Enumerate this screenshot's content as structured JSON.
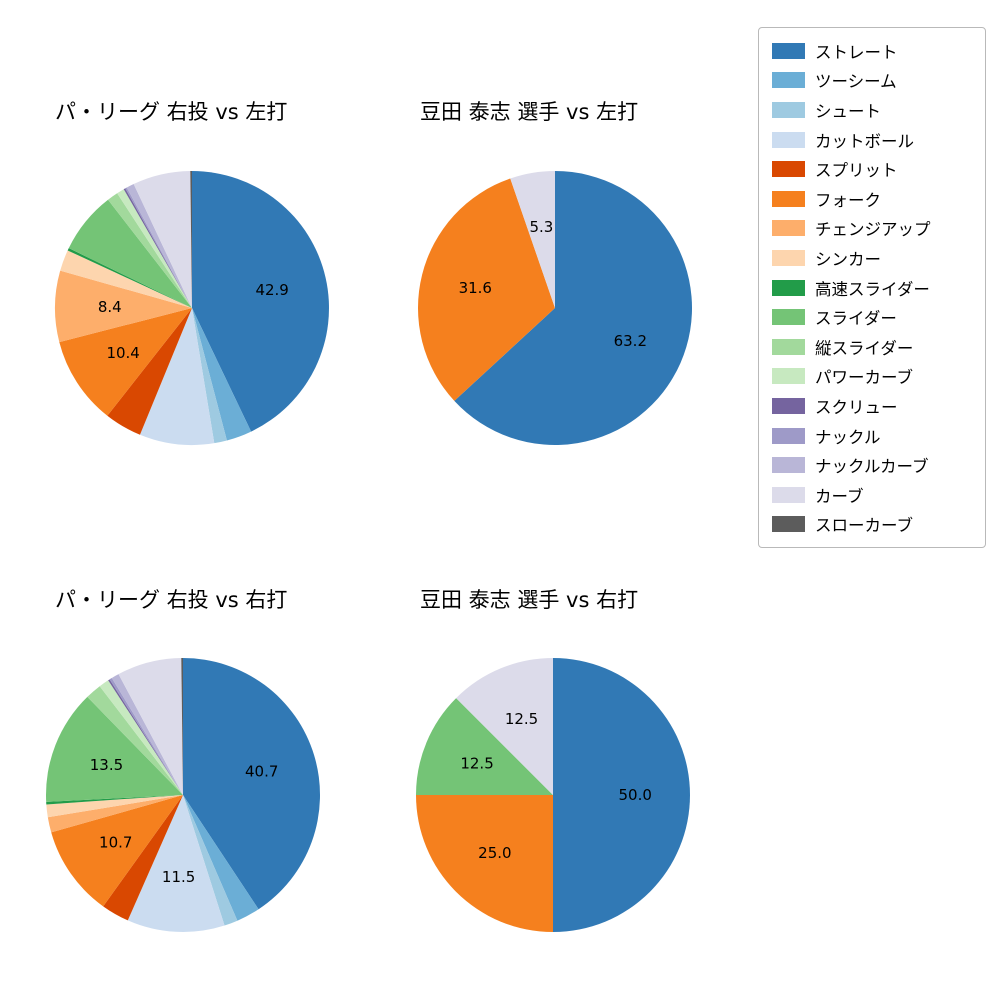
{
  "page": {
    "background": "#ffffff"
  },
  "palette": {
    "ストレート": "#3179b5",
    "ツーシーム": "#6baed6",
    "シュート": "#9ecae1",
    "カットボール": "#cbdcf0",
    "スプリット": "#d94801",
    "フォーク": "#f5801e",
    "チェンジアップ": "#fdae6b",
    "シンカー": "#fdd5ae",
    "高速スライダー": "#229c49",
    "スライダー": "#74c476",
    "縦スライダー": "#a2d99c",
    "パワーカーブ": "#c7e9c0",
    "スクリュー": "#75649f",
    "ナックル": "#9e9ac8",
    "ナックルカーブ": "#b9b6d7",
    "カーブ": "#dcdbea",
    "スローカーブ": "#5c5c5c"
  },
  "legend": {
    "items": [
      "ストレート",
      "ツーシーム",
      "シュート",
      "カットボール",
      "スプリット",
      "フォーク",
      "チェンジアップ",
      "シンカー",
      "高速スライダー",
      "スライダー",
      "縦スライダー",
      "パワーカーブ",
      "スクリュー",
      "ナックル",
      "ナックルカーブ",
      "カーブ",
      "スローカーブ"
    ]
  },
  "chart_data": {
    "type": "pie",
    "layout": {
      "start_angle_deg": 90,
      "direction": "clockwise",
      "label_radius_ratio": 0.6,
      "legend_position": "upper right",
      "note": "values without printed labels are visual estimates"
    },
    "charts": [
      {
        "title": "パ・リーグ 右投 vs 左打",
        "slices": [
          {
            "name": "ストレート",
            "value": 42.9,
            "label": "42.9"
          },
          {
            "name": "ツーシーム",
            "value": 3.0
          },
          {
            "name": "シュート",
            "value": 1.5
          },
          {
            "name": "カットボール",
            "value": 8.8
          },
          {
            "name": "スプリット",
            "value": 4.4
          },
          {
            "name": "フォーク",
            "value": 10.4,
            "label": "10.4"
          },
          {
            "name": "チェンジアップ",
            "value": 8.4,
            "label": "8.4"
          },
          {
            "name": "シンカー",
            "value": 2.5
          },
          {
            "name": "高速スライダー",
            "value": 0.3
          },
          {
            "name": "スライダー",
            "value": 7.3
          },
          {
            "name": "縦スライダー",
            "value": 1.3
          },
          {
            "name": "パワーカーブ",
            "value": 0.9
          },
          {
            "name": "スクリュー",
            "value": 0.2
          },
          {
            "name": "ナックル",
            "value": 0.2
          },
          {
            "name": "ナックルカーブ",
            "value": 0.9
          },
          {
            "name": "カーブ",
            "value": 6.8
          },
          {
            "name": "スローカーブ",
            "value": 0.2
          }
        ]
      },
      {
        "title": "豆田 泰志 選手 vs 左打",
        "slices": [
          {
            "name": "ストレート",
            "value": 63.2,
            "label": "63.2"
          },
          {
            "name": "フォーク",
            "value": 31.6,
            "label": "31.6"
          },
          {
            "name": "カーブ",
            "value": 5.3,
            "label": "5.3"
          }
        ]
      },
      {
        "title": "パ・リーグ 右投 vs 右打",
        "slices": [
          {
            "name": "ストレート",
            "value": 40.7,
            "label": "40.7"
          },
          {
            "name": "ツーシーム",
            "value": 2.8
          },
          {
            "name": "シュート",
            "value": 1.6
          },
          {
            "name": "カットボール",
            "value": 11.5,
            "label": "11.5"
          },
          {
            "name": "スプリット",
            "value": 3.3
          },
          {
            "name": "フォーク",
            "value": 10.7,
            "label": "10.7"
          },
          {
            "name": "チェンジアップ",
            "value": 1.8
          },
          {
            "name": "シンカー",
            "value": 1.5
          },
          {
            "name": "高速スライダー",
            "value": 0.3
          },
          {
            "name": "スライダー",
            "value": 13.5,
            "label": "13.5"
          },
          {
            "name": "縦スライダー",
            "value": 1.9
          },
          {
            "name": "パワーカーブ",
            "value": 1.2
          },
          {
            "name": "スクリュー",
            "value": 0.2
          },
          {
            "name": "ナックル",
            "value": 0.3
          },
          {
            "name": "ナックルカーブ",
            "value": 0.9
          },
          {
            "name": "カーブ",
            "value": 7.6
          },
          {
            "name": "スローカーブ",
            "value": 0.2
          }
        ]
      },
      {
        "title": "豆田 泰志 選手 vs 右打",
        "slices": [
          {
            "name": "ストレート",
            "value": 50.0,
            "label": "50.0"
          },
          {
            "name": "フォーク",
            "value": 25.0,
            "label": "25.0"
          },
          {
            "name": "スライダー",
            "value": 12.5,
            "label": "12.5"
          },
          {
            "name": "カーブ",
            "value": 12.5,
            "label": "12.5"
          }
        ]
      }
    ]
  }
}
